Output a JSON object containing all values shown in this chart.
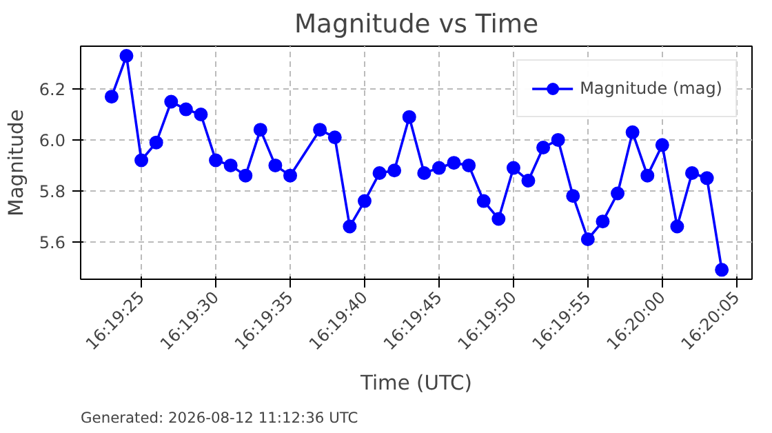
{
  "chart_data": {
    "type": "line",
    "title": "Magnitude vs Time",
    "xlabel": "Time (UTC)",
    "ylabel": "Magnitude",
    "annotations": [
      "Generated: 2026-08-12 11:12:36 UTC"
    ],
    "x": [
      16.323056,
      16.323333,
      16.323611,
      16.323889,
      16.324167,
      16.324444,
      16.324722,
      16.325,
      16.325278,
      16.325556,
      16.325833,
      16.326111,
      16.326389,
      16.326944,
      16.327222,
      16.3275,
      16.327778,
      16.328056,
      16.328333,
      16.328611,
      16.328889,
      16.329167,
      16.329444,
      16.329722,
      16.33,
      16.330278,
      16.330556,
      16.330833,
      16.331111,
      16.331389,
      16.331667,
      16.331944,
      16.332222,
      16.3325,
      16.332778,
      16.333056,
      16.333333,
      16.333611,
      16.333889,
      16.334167,
      16.334444
    ],
    "series": [
      {
        "name": "Magnitude (mag)",
        "color": "#0000ff",
        "values": [
          6.17,
          6.33,
          5.92,
          5.99,
          6.15,
          6.12,
          6.1,
          5.92,
          5.9,
          5.86,
          6.04,
          5.9,
          5.86,
          6.04,
          6.01,
          5.66,
          5.76,
          5.87,
          5.88,
          6.09,
          5.87,
          5.89,
          5.91,
          5.9,
          5.76,
          5.69,
          5.89,
          5.84,
          5.97,
          6.0,
          5.78,
          5.61,
          5.68,
          5.79,
          6.03,
          5.86,
          5.98,
          5.66,
          5.87,
          5.85,
          5.49
        ]
      }
    ],
    "xlim": [
      16.322478,
      16.335008
    ],
    "ylim": [
      5.453,
      6.368
    ],
    "xticks": [
      {
        "value": 16.323611,
        "label": "16:19:25"
      },
      {
        "value": 16.325,
        "label": "16:19:30"
      },
      {
        "value": 16.326389,
        "label": "16:19:35"
      },
      {
        "value": 16.327778,
        "label": "16:19:40"
      },
      {
        "value": 16.329167,
        "label": "16:19:45"
      },
      {
        "value": 16.330556,
        "label": "16:19:50"
      },
      {
        "value": 16.331944,
        "label": "16:19:55"
      },
      {
        "value": 16.333333,
        "label": "16:20:00"
      },
      {
        "value": 16.334722,
        "label": "16:20:05"
      }
    ],
    "yticks": [
      5.6,
      5.8,
      {
        "value": 6.0,
        "label": "6.0"
      },
      6.2
    ],
    "grid": true,
    "legend": "top right",
    "marker": "circle",
    "line_style": "solid"
  }
}
